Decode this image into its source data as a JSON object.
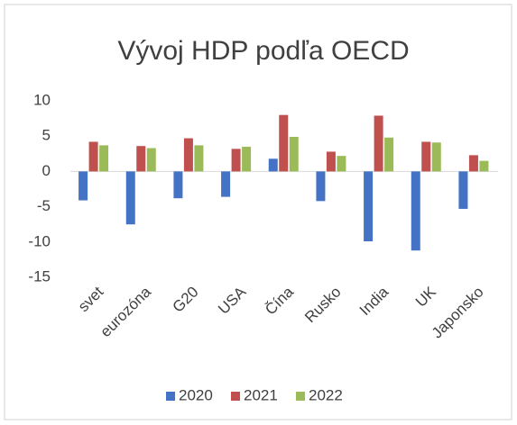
{
  "chart_data": {
    "type": "bar",
    "title": "Vývoj HDP podľa OECD",
    "categories": [
      "svet",
      "eurozóna",
      "G20",
      "USA",
      "Čína",
      "Rusko",
      "India",
      "UK",
      "Japonsko"
    ],
    "series": [
      {
        "name": "2020",
        "color": "#4472c4",
        "values": [
          -4.1,
          -7.5,
          -3.8,
          -3.6,
          1.8,
          -4.2,
          -9.9,
          -11.2,
          -5.3
        ]
      },
      {
        "name": "2021",
        "color": "#c0504d",
        "values": [
          4.2,
          3.6,
          4.7,
          3.2,
          8.0,
          2.8,
          7.9,
          4.2,
          2.3
        ]
      },
      {
        "name": "2022",
        "color": "#9bbb59",
        "values": [
          3.7,
          3.3,
          3.7,
          3.5,
          4.9,
          2.2,
          4.8,
          4.1,
          1.5
        ]
      }
    ],
    "ylim": [
      -15,
      10
    ],
    "yticks": [
      -15,
      -10,
      -5,
      0,
      5,
      10
    ],
    "grid": false,
    "legend": "bottom"
  }
}
